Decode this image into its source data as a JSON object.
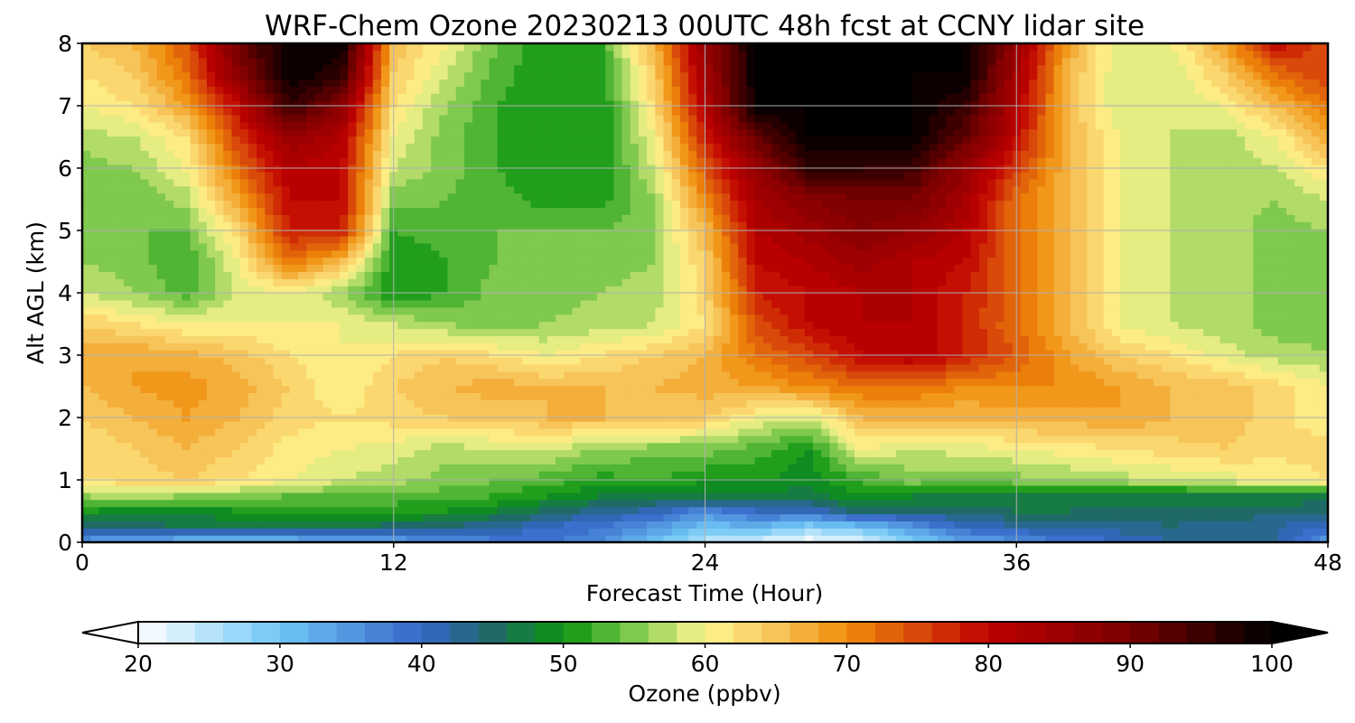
{
  "chart_data": {
    "type": "heatmap",
    "title": "WRF-Chem Ozone  20230213 00UTC 48h fcst at CCNY lidar site",
    "xlabel": "Forecast Time (Hour)",
    "ylabel": "Alt AGL (km)",
    "xlim": [
      0,
      48
    ],
    "ylim": [
      0,
      8
    ],
    "xticks": [
      "0",
      "12",
      "24",
      "36",
      "48"
    ],
    "yticks": [
      "0",
      "1",
      "2",
      "3",
      "4",
      "5",
      "6",
      "7",
      "8"
    ],
    "grid": true,
    "colorbar": {
      "label": "Ozone  (ppbv)",
      "min": 20,
      "max": 100,
      "step": 2,
      "extend": "both",
      "ticks": [
        "20",
        "30",
        "40",
        "50",
        "60",
        "70",
        "80",
        "90",
        "100"
      ],
      "color_stops": [
        {
          "v": 20,
          "c": "#ffffff"
        },
        {
          "v": 30,
          "c": "#6ec6f5"
        },
        {
          "v": 40,
          "c": "#3566c9"
        },
        {
          "v": 45,
          "c": "#1f6a66"
        },
        {
          "v": 50,
          "c": "#0a9410"
        },
        {
          "v": 55,
          "c": "#7fc94e"
        },
        {
          "v": 60,
          "c": "#fff58f"
        },
        {
          "v": 65,
          "c": "#f7c45a"
        },
        {
          "v": 70,
          "c": "#f08c0a"
        },
        {
          "v": 75,
          "c": "#d94a0a"
        },
        {
          "v": 80,
          "c": "#c00000"
        },
        {
          "v": 90,
          "c": "#7a0000"
        },
        {
          "v": 100,
          "c": "#000000"
        }
      ]
    },
    "altitudes_km": [
      0,
      0.25,
      0.5,
      0.75,
      1,
      1.5,
      2,
      2.5,
      3,
      3.5,
      4,
      4.5,
      5,
      5.5,
      6,
      6.5,
      7,
      7.5,
      8
    ],
    "hours": [
      0,
      2,
      4,
      6,
      8,
      10,
      12,
      14,
      16,
      18,
      20,
      22,
      24,
      26,
      28,
      30,
      32,
      34,
      36,
      38,
      40,
      42,
      44,
      46,
      48
    ],
    "ozone_ppbv": [
      [
        34,
        32,
        30,
        30,
        30,
        32,
        33,
        35,
        37,
        38,
        36,
        30,
        25,
        22,
        20,
        22,
        28,
        33,
        35,
        38,
        40,
        42,
        42,
        42,
        34
      ],
      [
        44,
        45,
        46,
        47,
        47,
        46,
        45,
        44,
        42,
        40,
        38,
        35,
        30,
        32,
        28,
        30,
        35,
        40,
        42,
        42,
        43,
        44,
        43,
        42,
        40
      ],
      [
        50,
        49,
        48,
        50,
        51,
        51,
        51,
        50,
        48,
        45,
        43,
        41,
        36,
        40,
        40,
        45,
        44,
        45,
        46,
        46,
        45,
        45,
        45,
        45,
        44
      ],
      [
        56,
        57,
        56,
        55,
        54,
        54,
        53,
        53,
        52,
        50,
        48,
        47,
        48,
        47,
        47,
        50,
        48,
        48,
        47,
        47,
        47,
        47,
        48,
        48,
        47
      ],
      [
        62,
        63,
        64,
        62,
        60,
        58,
        57,
        55,
        54,
        53,
        51,
        52,
        50,
        50,
        49,
        52,
        55,
        54,
        55,
        56,
        57,
        58,
        59,
        60,
        62
      ],
      [
        62,
        64,
        66,
        64,
        61,
        60,
        59,
        57,
        58,
        58,
        56,
        55,
        55,
        53,
        50,
        60,
        58,
        59,
        60,
        61,
        62,
        63,
        64,
        63,
        63
      ],
      [
        64,
        66,
        68,
        66,
        63,
        62,
        63,
        64,
        65,
        66,
        66,
        65,
        64,
        60,
        58,
        66,
        66,
        66,
        67,
        67,
        68,
        66,
        65,
        63,
        60
      ],
      [
        66,
        68,
        69,
        67,
        64,
        60,
        64,
        66,
        67,
        66,
        66,
        66,
        67,
        68,
        70,
        72,
        72,
        70,
        70,
        70,
        68,
        66,
        65,
        63,
        60
      ],
      [
        68,
        68,
        67,
        65,
        62,
        60,
        62,
        64,
        62,
        60,
        62,
        64,
        66,
        72,
        75,
        80,
        82,
        78,
        74,
        68,
        64,
        62,
        59,
        57,
        56
      ],
      [
        64,
        62,
        60,
        60,
        60,
        60,
        58,
        56,
        55,
        56,
        57,
        58,
        62,
        75,
        80,
        82,
        82,
        78,
        72,
        66,
        60,
        58,
        57,
        55,
        55
      ],
      [
        58,
        56,
        53,
        58,
        60,
        56,
        50,
        52,
        55,
        55,
        56,
        57,
        63,
        78,
        80,
        82,
        82,
        78,
        73,
        66,
        60,
        58,
        57,
        55,
        55
      ],
      [
        56,
        55,
        52,
        60,
        72,
        66,
        50,
        52,
        54,
        54,
        55,
        56,
        64,
        80,
        82,
        85,
        82,
        80,
        72,
        66,
        60,
        58,
        57,
        55,
        55
      ],
      [
        55,
        54,
        54,
        63,
        78,
        78,
        52,
        53,
        54,
        54,
        54,
        56,
        66,
        82,
        85,
        88,
        86,
        82,
        72,
        66,
        60,
        58,
        57,
        55,
        56
      ],
      [
        54,
        54,
        57,
        68,
        80,
        80,
        55,
        54,
        53,
        51,
        51,
        56,
        70,
        84,
        88,
        90,
        90,
        84,
        72,
        66,
        60,
        58,
        57,
        56,
        58
      ],
      [
        55,
        56,
        60,
        72,
        82,
        80,
        58,
        55,
        52,
        50,
        50,
        58,
        74,
        86,
        96,
        96,
        95,
        86,
        76,
        66,
        60,
        58,
        57,
        58,
        62
      ],
      [
        57,
        58,
        62,
        76,
        86,
        82,
        60,
        55,
        52,
        50,
        50,
        60,
        78,
        92,
        100,
        100,
        100,
        92,
        80,
        66,
        60,
        58,
        57,
        60,
        68
      ],
      [
        60,
        62,
        68,
        80,
        96,
        88,
        62,
        56,
        52,
        50,
        50,
        62,
        82,
        100,
        100,
        100,
        100,
        96,
        82,
        66,
        58,
        58,
        60,
        66,
        72
      ],
      [
        62,
        64,
        72,
        88,
        100,
        96,
        64,
        58,
        53,
        50,
        51,
        64,
        84,
        100,
        100,
        100,
        100,
        100,
        84,
        66,
        58,
        58,
        64,
        72,
        76
      ],
      [
        64,
        66,
        74,
        90,
        100,
        100,
        66,
        60,
        54,
        50,
        52,
        66,
        86,
        100,
        100,
        100,
        100,
        100,
        86,
        68,
        58,
        60,
        68,
        80,
        74
      ]
    ]
  }
}
